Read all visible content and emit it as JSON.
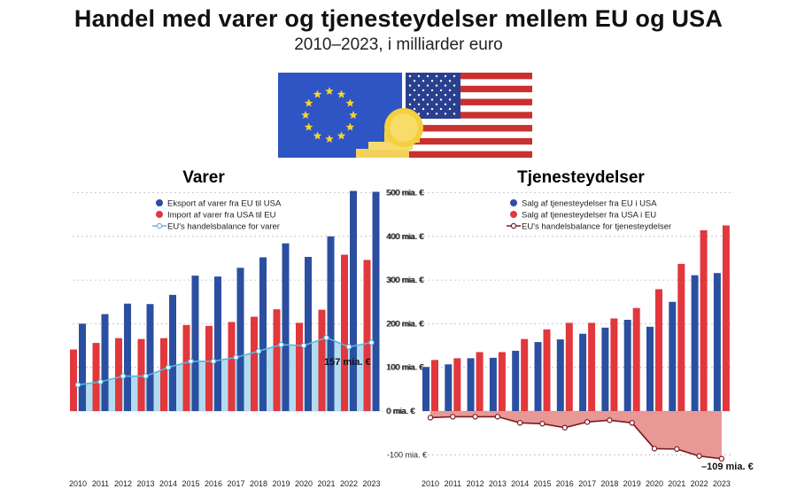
{
  "title": "Handel med varer og tjenesteydelser mellem EU og USA",
  "subtitle": "2010–2023, i milliarder euro",
  "colors": {
    "blue": "#2b4fa0",
    "red": "#e2373c",
    "light_blue": "#5cb6dc",
    "area_fill": "#a6d6ee",
    "dark_red": "#7a1a22",
    "neg_fill": "#e89895",
    "grid": "#bbbbbb"
  },
  "image": {
    "icon": "eu-us-flags-coins-illustration"
  },
  "chart_data": [
    {
      "type": "bar",
      "title": "Varer",
      "categories": [
        "2010",
        "2011",
        "2012",
        "2013",
        "2014",
        "2015",
        "2016",
        "2017",
        "2018",
        "2019",
        "2020",
        "2021",
        "2022",
        "2023"
      ],
      "series": [
        {
          "name": "Eksport af varer fra EU til USA",
          "color": "#2b4fa0",
          "values": [
            200,
            222,
            246,
            245,
            266,
            310,
            308,
            328,
            352,
            384,
            353,
            400,
            504,
            502
          ]
        },
        {
          "name": "Import af varer fra USA til EU",
          "color": "#e2373c",
          "values": [
            141,
            156,
            167,
            165,
            167,
            197,
            195,
            204,
            216,
            233,
            202,
            232,
            358,
            346
          ]
        },
        {
          "name": "EU's handelsbalance for varer",
          "color": "#5cb6dc",
          "line": true,
          "values": [
            60,
            67,
            80,
            80,
            100,
            114,
            114,
            123,
            137,
            152,
            150,
            168,
            147,
            157
          ]
        }
      ],
      "yticks": [
        0,
        100,
        200,
        300,
        400,
        500
      ],
      "ytick_labels": [
        "0 mia. €",
        "100 mia. €",
        "200 mia. €",
        "300 mia. €",
        "400 mia. €",
        "500 mia. €"
      ],
      "ylim": [
        0,
        500
      ],
      "grid": true,
      "legend": "top-left",
      "annotation": "157 mia. €"
    },
    {
      "type": "bar",
      "title": "Tjenesteydelser",
      "categories": [
        "2010",
        "2011",
        "2012",
        "2013",
        "2014",
        "2015",
        "2016",
        "2017",
        "2018",
        "2019",
        "2020",
        "2021",
        "2022",
        "2023"
      ],
      "series": [
        {
          "name": "Salg af tjenesteydelser fra EU i USA",
          "color": "#2b4fa0",
          "values": [
            101,
            107,
            121,
            122,
            138,
            158,
            164,
            177,
            191,
            209,
            193,
            250,
            311,
            316
          ]
        },
        {
          "name": "Salg af tjenesteydelser fra USA i EU",
          "color": "#e2373c",
          "values": [
            117,
            121,
            135,
            135,
            165,
            187,
            202,
            202,
            212,
            236,
            279,
            337,
            414,
            425
          ]
        },
        {
          "name": "EU's handelsbalance for tjenesteydelser",
          "color": "#7a1a22",
          "line": true,
          "values": [
            -15,
            -13,
            -13,
            -13,
            -27,
            -29,
            -38,
            -25,
            -21,
            -27,
            -86,
            -87,
            -103,
            -109
          ]
        }
      ],
      "yticks": [
        -100,
        0,
        100,
        200,
        300,
        400,
        500
      ],
      "ytick_labels": [
        "-100 mia. €",
        "0 mia. €",
        "100 mia. €",
        "200 mia. €",
        "300 mia. €",
        "400 mia. €",
        "500 mia. €"
      ],
      "ylim": [
        -120,
        500
      ],
      "grid": true,
      "legend": "top-left",
      "annotation": "–109 mia. €"
    }
  ]
}
